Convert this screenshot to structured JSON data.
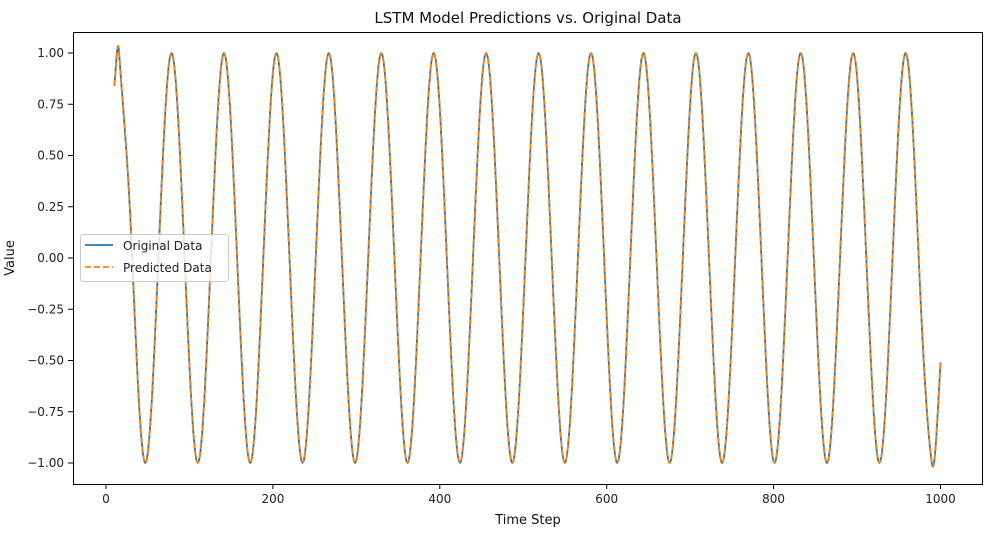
{
  "chart_data": {
    "type": "line",
    "title": "LSTM Model Predictions vs. Original Data",
    "xlabel": "Time Step",
    "ylabel": "Value",
    "xlim": [
      -40,
      1050
    ],
    "ylim": [
      -1.1,
      1.1
    ],
    "xticks": [
      0,
      200,
      400,
      600,
      800,
      1000
    ],
    "xtick_labels": [
      "0",
      "200",
      "400",
      "600",
      "800",
      "1000"
    ],
    "yticks": [
      -1.0,
      -0.75,
      -0.5,
      -0.25,
      0.0,
      0.25,
      0.5,
      0.75,
      1.0
    ],
    "ytick_labels": [
      "−1.00",
      "−0.75",
      "−0.50",
      "−0.25",
      "0.00",
      "0.25",
      "0.50",
      "0.75",
      "1.00"
    ],
    "grid": false,
    "legend_position": "center-left",
    "x": [
      10,
      15.7,
      31.4,
      47.1,
      62.8,
      78.5,
      94.2,
      110.0,
      125.7,
      141.4,
      157.1,
      172.8,
      188.5,
      204.2,
      219.9,
      235.6,
      251.3,
      267.0,
      282.7,
      298.5,
      314.2,
      329.9,
      345.6,
      361.3,
      377.0,
      392.7,
      408.4,
      424.1,
      439.8,
      455.5,
      471.2,
      486.9,
      502.7,
      518.4,
      534.1,
      549.8,
      565.5,
      581.2,
      596.9,
      612.6,
      628.3,
      644.0,
      659.7,
      675.4,
      691.2,
      706.9,
      722.6,
      738.3,
      754.0,
      769.7,
      785.4,
      801.1,
      816.8,
      832.5,
      848.2,
      863.9,
      879.6,
      895.4,
      911.1,
      926.8,
      942.5,
      958.2,
      973.9,
      989.6,
      1000
    ],
    "series": [
      {
        "name": "Original Data",
        "color": "#1f77b4",
        "style": "solid",
        "values": [
          0.84,
          1,
          0,
          -1,
          0,
          1,
          0,
          -1,
          0,
          1,
          0,
          -1,
          0,
          1,
          0,
          -1,
          0,
          1,
          0,
          -1,
          0,
          1,
          0,
          -1,
          0,
          1,
          0,
          -1,
          0,
          1,
          0,
          -1,
          0,
          1,
          0,
          -1,
          0,
          1,
          0,
          -1,
          0,
          1,
          0,
          -1,
          0,
          1,
          0,
          -1,
          0,
          1,
          0,
          -1,
          0,
          1,
          0,
          -1,
          0,
          1,
          0,
          -1,
          0,
          1,
          0,
          -1,
          -0.51
        ]
      },
      {
        "name": "Predicted Data",
        "color": "#ff7f0e",
        "style": "dashed",
        "values": [
          0.84,
          1,
          0,
          -1,
          0,
          1,
          0,
          -1,
          0,
          1,
          0,
          -1,
          0,
          1,
          0,
          -1,
          0,
          1,
          0,
          -1,
          0,
          1,
          0,
          -1,
          0,
          1,
          0,
          -1,
          0,
          1,
          0,
          -1,
          0,
          1,
          0,
          -1,
          0,
          1,
          0,
          -1,
          0,
          1,
          0,
          -1,
          0,
          1,
          0,
          -1,
          0,
          1,
          0,
          -1,
          0,
          1,
          0,
          -1,
          0,
          1,
          0,
          -1,
          0,
          1,
          0,
          -1,
          -0.51
        ]
      }
    ]
  }
}
